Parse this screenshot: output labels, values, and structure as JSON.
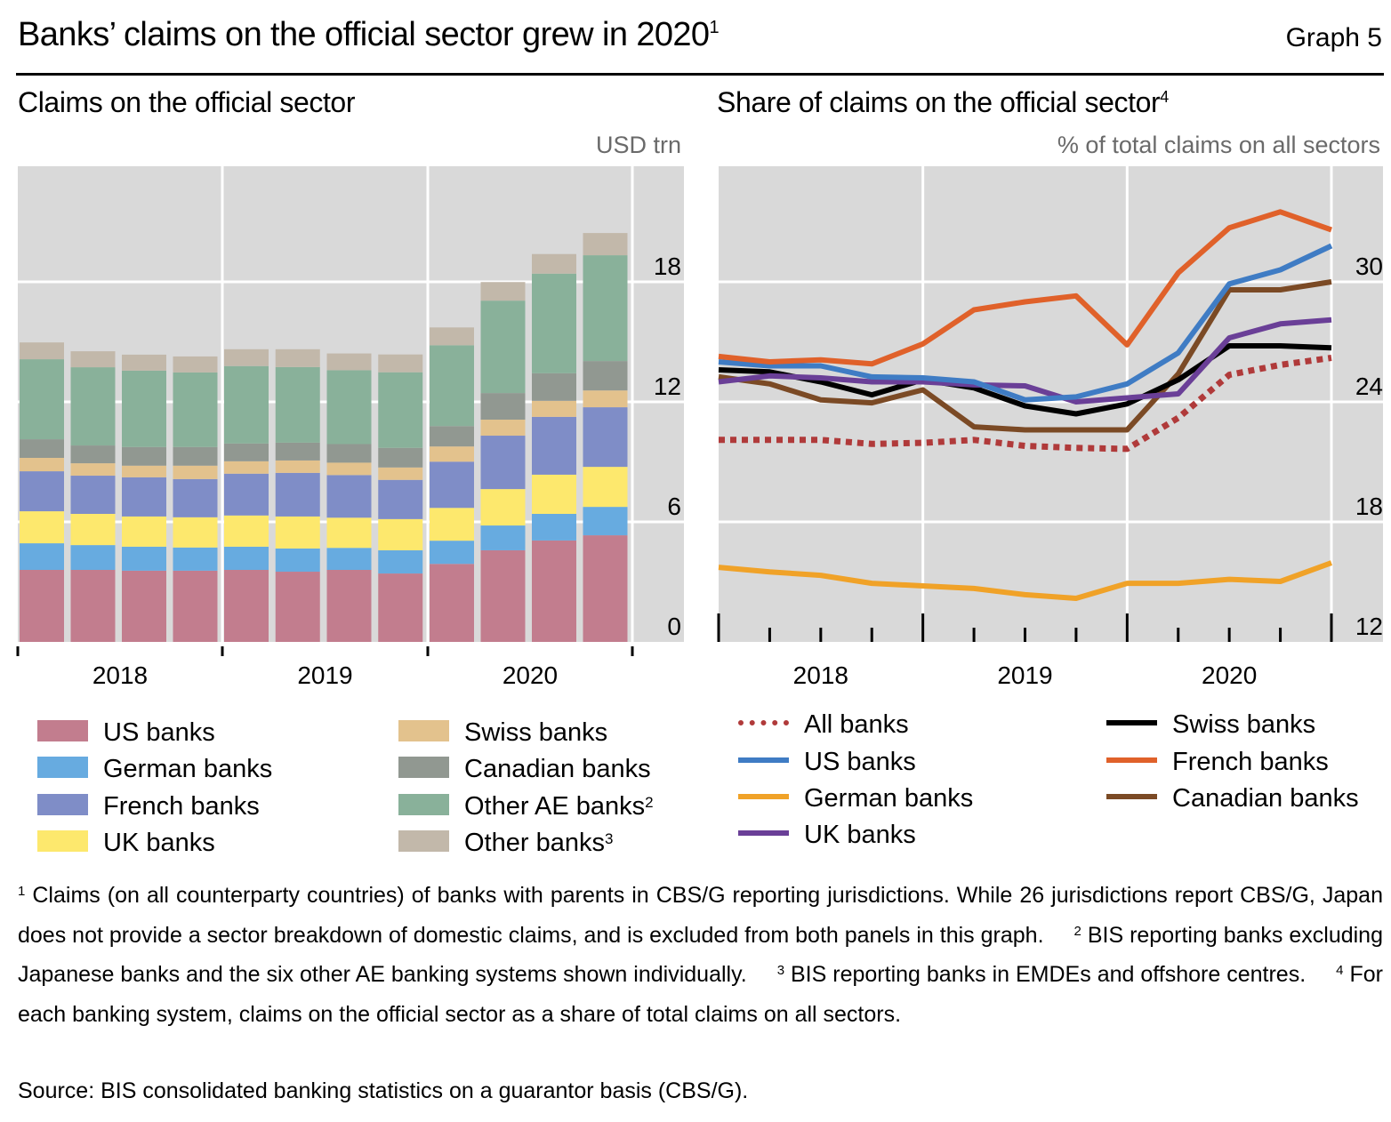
{
  "header": {
    "title": "Banks’ claims on the official sector grew in 2020",
    "title_note": "1",
    "graph_label": "Graph 5"
  },
  "colors": {
    "plot_background": "#d9d9d9",
    "gridline": "#ffffff",
    "us": "#c27d8e",
    "german": "#67abe0",
    "french": "#7f8dc7",
    "uk": "#fde86d",
    "swiss": "#e3c28d",
    "canadian": "#919891",
    "other_ae": "#89b19a",
    "other": "#c2b8aa"
  },
  "chart_data": [
    {
      "type": "bar",
      "stacked": true,
      "title": "Claims on the official sector",
      "ylabel": "USD trn",
      "ylim": [
        0,
        24
      ],
      "yticks": [
        0,
        6,
        12,
        18
      ],
      "y_axis_side": "right",
      "grid": true,
      "x_groups": [
        "2018",
        "2019",
        "2020"
      ],
      "categories": [
        "2018 Q1",
        "2018 Q2",
        "2018 Q3",
        "2018 Q4",
        "2019 Q1",
        "2019 Q2",
        "2019 Q3",
        "2019 Q4",
        "2020 Q1",
        "2020 Q2",
        "2020 Q3",
        "2020 Q4"
      ],
      "series": [
        {
          "name": "US banks",
          "key": "us",
          "values": [
            3.6,
            3.6,
            3.56,
            3.56,
            3.6,
            3.51,
            3.6,
            3.42,
            3.9,
            4.58,
            5.07,
            5.33
          ]
        },
        {
          "name": "German banks",
          "key": "german",
          "values": [
            1.33,
            1.24,
            1.2,
            1.16,
            1.16,
            1.16,
            1.1,
            1.16,
            1.16,
            1.24,
            1.33,
            1.42
          ]
        },
        {
          "name": "UK banks",
          "key": "uk",
          "values": [
            1.6,
            1.56,
            1.51,
            1.51,
            1.56,
            1.6,
            1.51,
            1.56,
            1.64,
            1.82,
            1.96,
            2.0
          ]
        },
        {
          "name": "French banks",
          "key": "french",
          "values": [
            2.0,
            1.91,
            1.96,
            1.91,
            2.09,
            2.18,
            2.13,
            1.96,
            2.31,
            2.67,
            2.89,
            2.98
          ]
        },
        {
          "name": "Swiss banks",
          "key": "swiss",
          "values": [
            0.67,
            0.62,
            0.58,
            0.67,
            0.62,
            0.62,
            0.62,
            0.62,
            0.76,
            0.8,
            0.8,
            0.84
          ]
        },
        {
          "name": "Canadian banks",
          "key": "canadian",
          "values": [
            0.93,
            0.89,
            0.93,
            0.93,
            0.89,
            0.89,
            0.93,
            0.98,
            1.02,
            1.33,
            1.38,
            1.47
          ]
        },
        {
          "name": "Other AE banks",
          "key": "other_ae",
          "note": "2",
          "values": [
            4.0,
            3.91,
            3.82,
            3.73,
            3.87,
            3.78,
            3.69,
            3.78,
            4.04,
            4.62,
            4.98,
            5.29
          ]
        },
        {
          "name": "Other banks",
          "key": "other",
          "note": "3",
          "values": [
            0.84,
            0.8,
            0.8,
            0.8,
            0.84,
            0.89,
            0.84,
            0.89,
            0.89,
            0.93,
            0.98,
            1.11
          ]
        }
      ],
      "legend": {
        "placement": "bottom",
        "columns": 2,
        "items": [
          {
            "label": "US banks",
            "key": "us",
            "note": ""
          },
          {
            "label": "German banks",
            "key": "german",
            "note": ""
          },
          {
            "label": "French banks",
            "key": "french",
            "note": ""
          },
          {
            "label": "UK banks",
            "key": "uk",
            "note": ""
          },
          {
            "label": "Swiss banks",
            "key": "swiss",
            "note": ""
          },
          {
            "label": "Canadian banks",
            "key": "canadian",
            "note": ""
          },
          {
            "label": "Other AE banks",
            "key": "other_ae",
            "note": "2"
          },
          {
            "label": "Other banks",
            "key": "other",
            "note": "3"
          }
        ]
      }
    },
    {
      "type": "line",
      "title": "Share of claims on the official sector",
      "title_note": "4",
      "ylabel": "% of total claims on all sectors",
      "ylim": [
        12,
        35.6
      ],
      "yticks": [
        12,
        18,
        24,
        30
      ],
      "y_axis_side": "right",
      "grid": true,
      "x_groups": [
        "2018",
        "2019",
        "2020"
      ],
      "x": [
        "2017 Q4",
        "2018 Q1",
        "2018 Q2",
        "2018 Q3",
        "2018 Q4",
        "2019 Q1",
        "2019 Q2",
        "2019 Q3",
        "2019 Q4",
        "2020 Q1",
        "2020 Q2",
        "2020 Q3",
        "2020 Q4"
      ],
      "series": [
        {
          "name": "All banks",
          "color": "#b03a3a",
          "style": "dotted",
          "values": [
            22.1,
            22.1,
            22.1,
            21.9,
            21.95,
            22.1,
            21.8,
            21.7,
            21.65,
            23.2,
            25.35,
            25.85,
            26.2
          ]
        },
        {
          "name": "US banks",
          "color": "#3f7cc4",
          "style": "solid",
          "values": [
            26.0,
            25.8,
            25.8,
            25.25,
            25.2,
            25.0,
            24.1,
            24.25,
            24.9,
            26.45,
            29.9,
            30.6,
            31.8
          ]
        },
        {
          "name": "German banks",
          "color": "#f0a228",
          "style": "solid",
          "values": [
            15.73,
            15.5,
            15.33,
            14.93,
            14.8,
            14.67,
            14.36,
            14.18,
            14.93,
            14.93,
            15.13,
            15.02,
            15.95
          ]
        },
        {
          "name": "UK banks",
          "color": "#6a3f97",
          "style": "solid",
          "values": [
            25.0,
            25.3,
            25.2,
            25.0,
            25.0,
            24.85,
            24.8,
            24.0,
            24.2,
            24.4,
            27.2,
            27.9,
            28.1
          ]
        },
        {
          "name": "Swiss banks",
          "color": "#000000",
          "style": "solid",
          "values": [
            25.6,
            25.5,
            25.0,
            24.35,
            25.1,
            24.7,
            23.8,
            23.4,
            23.9,
            25.1,
            26.8,
            26.8,
            26.7
          ]
        },
        {
          "name": "French banks",
          "color": "#e0612a",
          "style": "solid",
          "values": [
            26.27,
            26.0,
            26.1,
            25.9,
            26.9,
            28.6,
            29.0,
            29.3,
            26.85,
            30.45,
            32.7,
            33.5,
            32.6
          ]
        },
        {
          "name": "Canadian banks",
          "color": "#7b4a25",
          "style": "solid",
          "values": [
            25.25,
            24.9,
            24.1,
            23.95,
            24.6,
            22.75,
            22.6,
            22.6,
            22.6,
            25.4,
            29.6,
            29.6,
            30.0
          ]
        }
      ],
      "legend": {
        "placement": "bottom",
        "columns": 2,
        "items": [
          {
            "label": "All banks",
            "series": 0
          },
          {
            "label": "US banks",
            "series": 1
          },
          {
            "label": "German banks",
            "series": 2
          },
          {
            "label": "UK banks",
            "series": 3
          },
          {
            "label": "Swiss banks",
            "series": 4
          },
          {
            "label": "French banks",
            "series": 5
          },
          {
            "label": "Canadian banks",
            "series": 6
          }
        ]
      }
    }
  ],
  "footnotes": {
    "n1_mark": "1",
    "n1": "Claims (on all counterparty countries) of banks with parents in CBS/G reporting jurisdictions. While 26 jurisdictions report CBS/G, Japan does not provide a sector breakdown of domestic claims, and is excluded from both panels in this graph.",
    "n2_mark": "2",
    "n2": "BIS reporting banks excluding Japanese banks and the six other AE banking systems shown individually.",
    "n3_mark": "3",
    "n3": "BIS reporting banks in EMDEs and offshore centres.",
    "n4_mark": "4",
    "n4": "For each banking system, claims on the official sector as a share of total claims on all sectors.",
    "source": "Source: BIS consolidated banking statistics on a guarantor basis (CBS/G)."
  }
}
